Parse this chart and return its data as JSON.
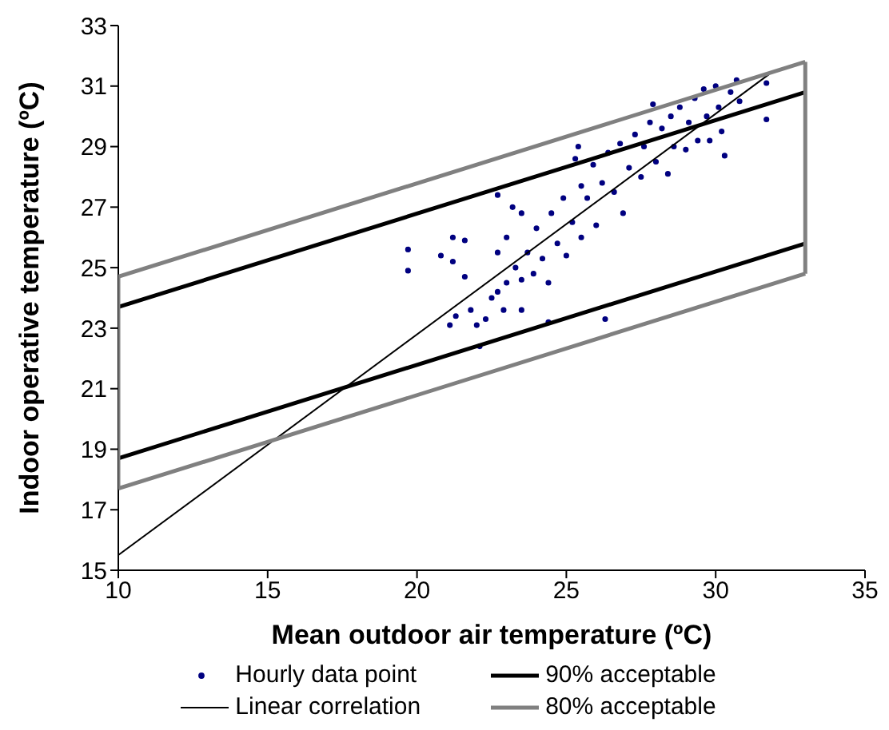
{
  "chart_data": {
    "type": "scatter",
    "xlabel": "Mean outdoor air temperature (ºC)",
    "ylabel": "Indoor operative temperature (ºC)",
    "xlim": [
      10,
      35
    ],
    "xticks": [
      10,
      15,
      20,
      25,
      30,
      35
    ],
    "ylim": [
      15,
      33
    ],
    "yticks": [
      15,
      17,
      19,
      21,
      23,
      25,
      27,
      29,
      31,
      33
    ],
    "legend": "bottom",
    "series": [
      {
        "name": "Hourly data point",
        "marker": "circle",
        "color": "#000080",
        "x": [
          19.7,
          19.7,
          20.8,
          21.2,
          21.2,
          21.1,
          21.3,
          21.6,
          21.6,
          21.8,
          22.1,
          22.0,
          22.3,
          22.5,
          22.7,
          22.7,
          22.7,
          22.9,
          23.0,
          23.0,
          23.2,
          23.3,
          23.5,
          23.5,
          23.5,
          23.7,
          23.9,
          24.0,
          24.2,
          24.4,
          24.4,
          24.5,
          24.7,
          24.9,
          25.0,
          25.2,
          25.3,
          25.4,
          25.5,
          25.5,
          25.7,
          25.9,
          26.0,
          26.2,
          26.3,
          26.4,
          26.6,
          26.8,
          26.9,
          27.1,
          27.3,
          27.5,
          27.6,
          27.8,
          27.9,
          28.0,
          28.2,
          28.4,
          28.5,
          28.6,
          28.8,
          29.0,
          29.1,
          29.3,
          29.4,
          29.6,
          29.7,
          29.8,
          30.0,
          30.1,
          30.2,
          30.3,
          30.5,
          30.7,
          30.8,
          31.7,
          31.7
        ],
        "values": [
          25.6,
          24.9,
          25.4,
          26.0,
          25.2,
          23.1,
          23.4,
          25.9,
          24.7,
          23.6,
          22.4,
          23.1,
          23.3,
          24.0,
          27.4,
          25.5,
          24.2,
          23.6,
          26.0,
          24.5,
          27.0,
          25.0,
          26.8,
          24.6,
          23.6,
          25.5,
          24.8,
          26.3,
          25.3,
          23.2,
          24.5,
          26.8,
          25.8,
          27.3,
          25.4,
          26.5,
          28.6,
          29.0,
          27.7,
          26.0,
          27.3,
          28.4,
          26.4,
          27.8,
          23.3,
          28.8,
          27.5,
          29.1,
          26.8,
          28.3,
          29.4,
          28.0,
          29.0,
          29.8,
          30.4,
          28.5,
          29.6,
          28.1,
          30.0,
          29.0,
          30.3,
          28.9,
          29.8,
          30.6,
          29.2,
          30.9,
          30.0,
          29.2,
          31.0,
          30.3,
          29.5,
          28.7,
          30.8,
          31.2,
          30.5,
          31.1,
          29.9
        ]
      },
      {
        "name": "Linear correlation",
        "type": "line",
        "color": "#000000",
        "x": [
          10,
          31.8
        ],
        "values": [
          15.5,
          31.4
        ]
      },
      {
        "name": "90% acceptable",
        "type": "line",
        "color": "#000000",
        "x": [
          10,
          33
        ],
        "values": [
          23.7,
          30.8
        ]
      },
      {
        "type": "line",
        "color": "#000000",
        "x": [
          10,
          33
        ],
        "values": [
          18.7,
          25.8
        ]
      },
      {
        "name": "80% acceptable",
        "type": "line",
        "color": "#808080",
        "x": [
          10,
          33
        ],
        "values": [
          24.7,
          31.8
        ]
      },
      {
        "type": "line",
        "color": "#808080",
        "x": [
          10,
          33
        ],
        "values": [
          17.7,
          24.8
        ]
      },
      {
        "type": "line",
        "color": "#808080",
        "x": [
          10,
          10
        ],
        "values": [
          17.7,
          24.7
        ]
      },
      {
        "type": "line",
        "color": "#808080",
        "x": [
          33,
          33
        ],
        "values": [
          24.8,
          31.8
        ]
      }
    ]
  }
}
